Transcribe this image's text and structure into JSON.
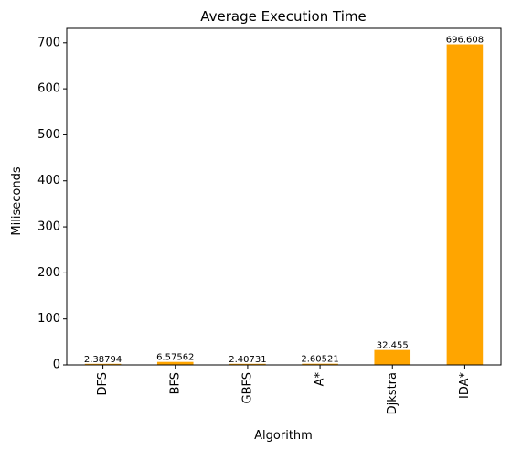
{
  "chart_data": {
    "type": "bar",
    "title": "Average Execution Time",
    "xlabel": "Algorithm",
    "ylabel": "Miliseconds",
    "categories": [
      "DFS",
      "BFS",
      "GBFS",
      "A*",
      "Djkstra",
      "IDA*"
    ],
    "values": [
      2.38794,
      6.57562,
      2.40731,
      2.60521,
      32.455,
      696.608
    ],
    "data_labels": [
      "2.38794",
      "6.57562",
      "2.40731",
      "2.60521",
      "32.455",
      "696.608"
    ],
    "ylim": [
      0,
      731.4
    ],
    "yticks": [
      0,
      100,
      200,
      300,
      400,
      500,
      600,
      700
    ],
    "bar_color": "#ffa500",
    "grid": false,
    "legend": "none"
  }
}
